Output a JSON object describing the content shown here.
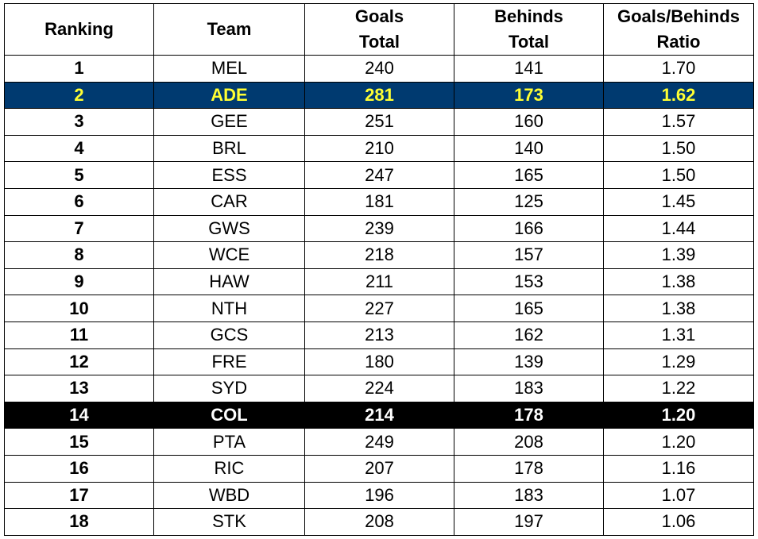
{
  "table": {
    "headers": {
      "ranking": "Ranking",
      "team": "Team",
      "goals_line1": "Goals",
      "goals_line2": "Total",
      "behinds_line1": "Behinds",
      "behinds_line2": "Total",
      "ratio_line1": "Goals/Behinds",
      "ratio_line2": "Ratio"
    },
    "highlight_colors": {
      "blue_row_background": "#003a70",
      "blue_row_text": "#ffff33",
      "black_row_background": "#000000",
      "black_row_text": "#ffffff"
    },
    "rows": [
      {
        "rank": "1",
        "team": "MEL",
        "goals": "240",
        "behinds": "141",
        "ratio": "1.70",
        "highlight": ""
      },
      {
        "rank": "2",
        "team": "ADE",
        "goals": "281",
        "behinds": "173",
        "ratio": "1.62",
        "highlight": "blue"
      },
      {
        "rank": "3",
        "team": "GEE",
        "goals": "251",
        "behinds": "160",
        "ratio": "1.57",
        "highlight": ""
      },
      {
        "rank": "4",
        "team": "BRL",
        "goals": "210",
        "behinds": "140",
        "ratio": "1.50",
        "highlight": ""
      },
      {
        "rank": "5",
        "team": "ESS",
        "goals": "247",
        "behinds": "165",
        "ratio": "1.50",
        "highlight": ""
      },
      {
        "rank": "6",
        "team": "CAR",
        "goals": "181",
        "behinds": "125",
        "ratio": "1.45",
        "highlight": ""
      },
      {
        "rank": "7",
        "team": "GWS",
        "goals": "239",
        "behinds": "166",
        "ratio": "1.44",
        "highlight": ""
      },
      {
        "rank": "8",
        "team": "WCE",
        "goals": "218",
        "behinds": "157",
        "ratio": "1.39",
        "highlight": ""
      },
      {
        "rank": "9",
        "team": "HAW",
        "goals": "211",
        "behinds": "153",
        "ratio": "1.38",
        "highlight": ""
      },
      {
        "rank": "10",
        "team": "NTH",
        "goals": "227",
        "behinds": "165",
        "ratio": "1.38",
        "highlight": ""
      },
      {
        "rank": "11",
        "team": "GCS",
        "goals": "213",
        "behinds": "162",
        "ratio": "1.31",
        "highlight": ""
      },
      {
        "rank": "12",
        "team": "FRE",
        "goals": "180",
        "behinds": "139",
        "ratio": "1.29",
        "highlight": ""
      },
      {
        "rank": "13",
        "team": "SYD",
        "goals": "224",
        "behinds": "183",
        "ratio": "1.22",
        "highlight": ""
      },
      {
        "rank": "14",
        "team": "COL",
        "goals": "214",
        "behinds": "178",
        "ratio": "1.20",
        "highlight": "black"
      },
      {
        "rank": "15",
        "team": "PTA",
        "goals": "249",
        "behinds": "208",
        "ratio": "1.20",
        "highlight": ""
      },
      {
        "rank": "16",
        "team": "RIC",
        "goals": "207",
        "behinds": "178",
        "ratio": "1.16",
        "highlight": ""
      },
      {
        "rank": "17",
        "team": "WBD",
        "goals": "196",
        "behinds": "183",
        "ratio": "1.07",
        "highlight": ""
      },
      {
        "rank": "18",
        "team": "STK",
        "goals": "208",
        "behinds": "197",
        "ratio": "1.06",
        "highlight": ""
      }
    ]
  }
}
